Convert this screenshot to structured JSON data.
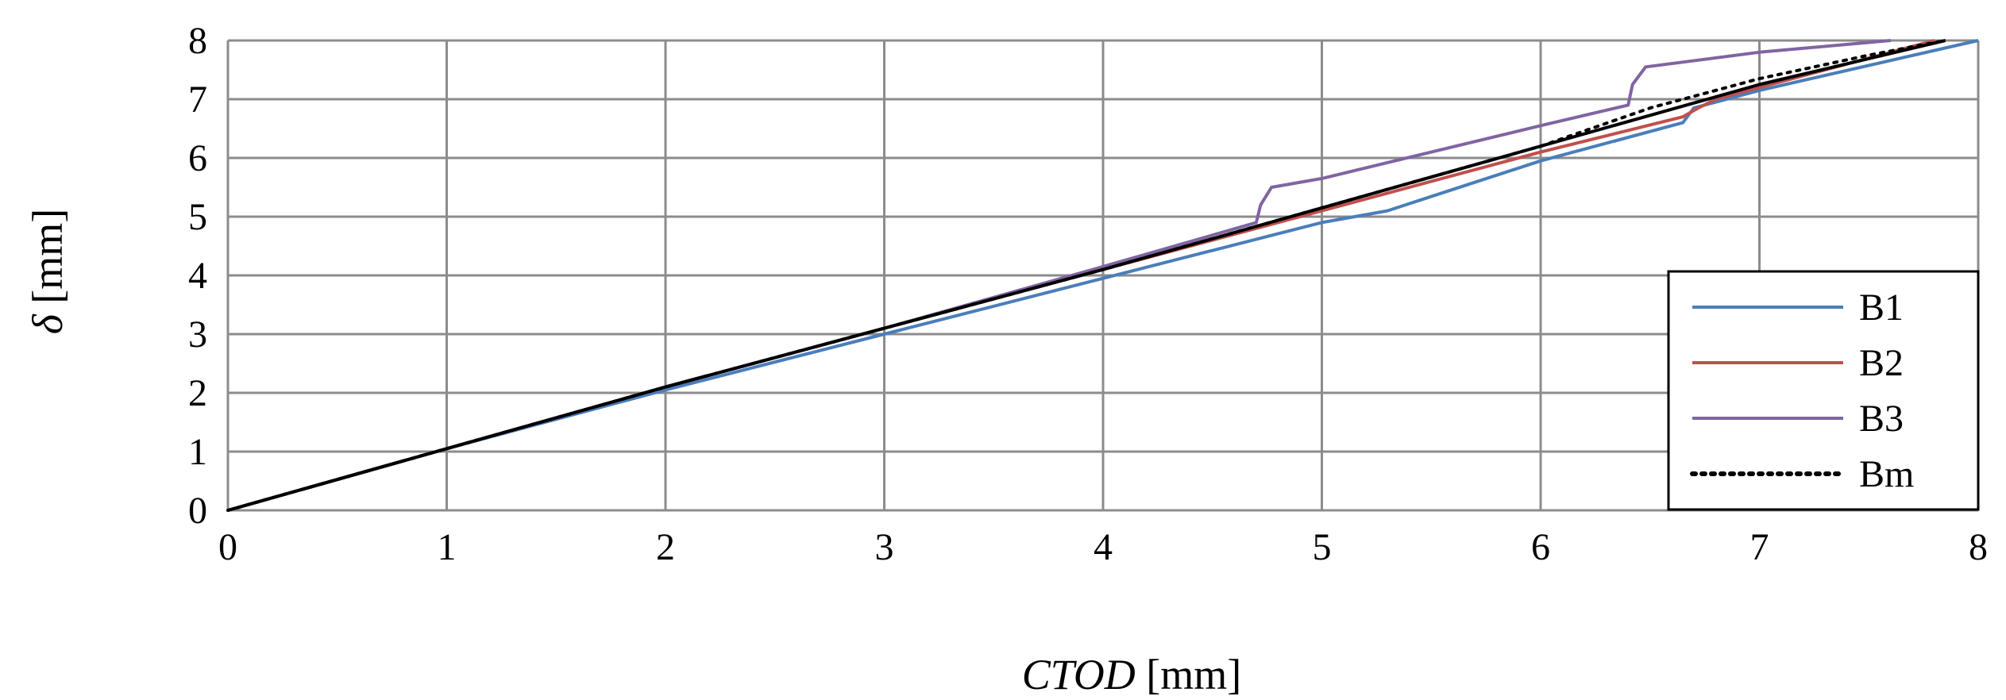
{
  "chart_data": {
    "type": "line",
    "xlabel_italic": "CTOD",
    "xlabel_unit": " [mm]",
    "ylabel_symbol": "δ",
    "ylabel_unit": " [mm]",
    "xlim": [
      0,
      8
    ],
    "ylim": [
      0,
      8
    ],
    "x_ticks": [
      0,
      1,
      2,
      3,
      4,
      5,
      6,
      7,
      8
    ],
    "y_ticks": [
      0,
      1,
      2,
      3,
      4,
      5,
      6,
      7,
      8
    ],
    "grid": true,
    "legend_position": "bottom-right",
    "series": [
      {
        "name": "B1",
        "color": "#4a7ebb",
        "style": "solid",
        "x": [
          0,
          1,
          2,
          3,
          4,
          5,
          5.3,
          6,
          6.65,
          6.7,
          7,
          8
        ],
        "y": [
          0,
          1.05,
          2.05,
          3.0,
          3.95,
          4.9,
          5.1,
          5.95,
          6.6,
          6.85,
          7.15,
          8.0
        ]
      },
      {
        "name": "B2",
        "color": "#c0504d",
        "style": "solid",
        "x": [
          0,
          1,
          2,
          3,
          4,
          5,
          6,
          6.65,
          6.72,
          6.8,
          7,
          7.8
        ],
        "y": [
          0,
          1.05,
          2.1,
          3.1,
          4.1,
          5.1,
          6.1,
          6.7,
          6.85,
          7.0,
          7.2,
          8.0
        ]
      },
      {
        "name": "B3",
        "color": "#8064a2",
        "style": "solid",
        "x": [
          0,
          1,
          2,
          3,
          4,
          4.7,
          4.72,
          4.77,
          5,
          6,
          6.4,
          6.42,
          6.48,
          7,
          7.6
        ],
        "y": [
          0,
          1.05,
          2.1,
          3.1,
          4.15,
          4.9,
          5.2,
          5.5,
          5.65,
          6.55,
          6.9,
          7.25,
          7.55,
          7.8,
          8.0
        ]
      },
      {
        "name": "Bm",
        "color": "#000000",
        "style": "dotted",
        "x": [
          0,
          1,
          2,
          3,
          4,
          5,
          6,
          6.5,
          7,
          7.5,
          7.85
        ],
        "y": [
          0,
          1.05,
          2.1,
          3.1,
          4.1,
          5.15,
          6.2,
          6.85,
          7.35,
          7.75,
          8.0
        ]
      },
      {
        "name": "",
        "color": "#000000",
        "style": "solid",
        "x": [
          0,
          1,
          2,
          3,
          4,
          5,
          6,
          7,
          7.85
        ],
        "y": [
          0,
          1.05,
          2.1,
          3.1,
          4.1,
          5.15,
          6.2,
          7.25,
          8.0
        ]
      }
    ]
  }
}
